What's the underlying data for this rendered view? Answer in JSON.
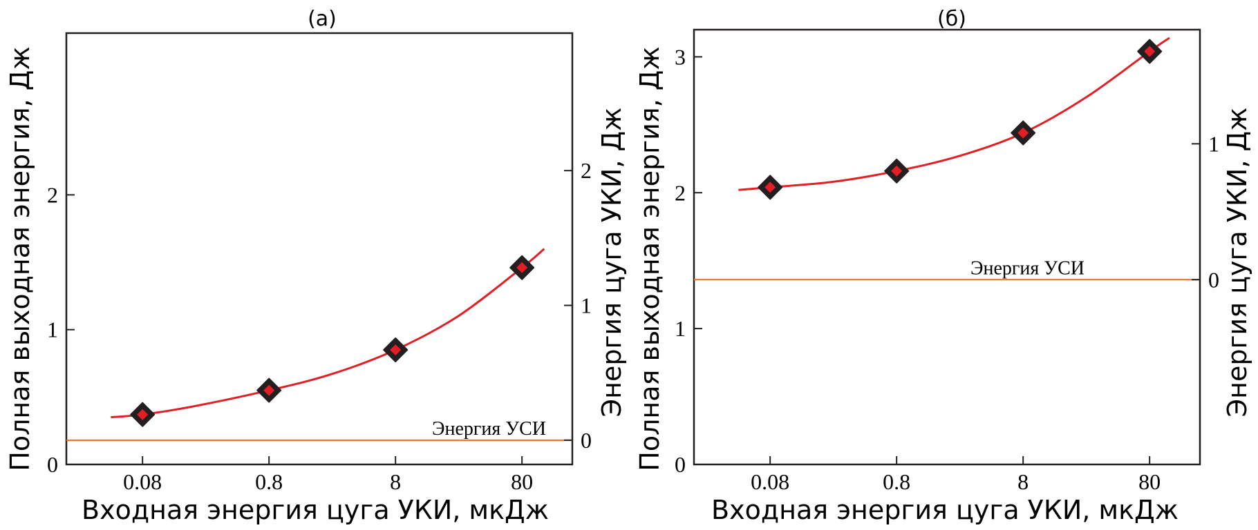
{
  "chart_data": [
    {
      "type": "scatter",
      "panel_label": "(a)",
      "xlabel": "Входная энергия цуга УКИ, мкДж",
      "ylabel": "Полная выходная энергия, Дж",
      "ylabel_right": "Энергия цуга УКИ, Дж",
      "x_scale": "log",
      "xlim": [
        0.02,
        200
      ],
      "x_ticks": [
        0.08,
        0.8,
        8,
        80
      ],
      "x_tick_labels": [
        "0.08",
        "0.8",
        "8",
        "80"
      ],
      "ylim": [
        0,
        3.2
      ],
      "y_ticks": [
        0,
        1,
        2
      ],
      "y_tick_labels": [
        "0",
        "1",
        "2"
      ],
      "ylim_right": [
        -0.18,
        3.02
      ],
      "y_ticks_right": [
        0,
        1,
        2
      ],
      "y_tick_labels_right": [
        "0",
        "1",
        "2"
      ],
      "points": [
        {
          "x": 0.08,
          "y": 0.37
        },
        {
          "x": 0.8,
          "y": 0.55
        },
        {
          "x": 8,
          "y": 0.85
        },
        {
          "x": 80,
          "y": 1.46
        }
      ],
      "fit_curve": [
        {
          "x": 0.045,
          "y": 0.35
        },
        {
          "x": 0.08,
          "y": 0.37
        },
        {
          "x": 0.2,
          "y": 0.43
        },
        {
          "x": 0.8,
          "y": 0.55
        },
        {
          "x": 2.5,
          "y": 0.67
        },
        {
          "x": 8,
          "y": 0.85
        },
        {
          "x": 25,
          "y": 1.1
        },
        {
          "x": 80,
          "y": 1.46
        },
        {
          "x": 120,
          "y": 1.6
        }
      ],
      "reference_line": {
        "y": 0.18,
        "label": "Энергия УСИ"
      },
      "colors": {
        "marker_fill": "#e31e24",
        "marker_edge": "#231f20",
        "fit": "#e31e24",
        "reference": "#f26b21"
      }
    },
    {
      "type": "scatter",
      "panel_label": "(б)",
      "xlabel": "Входная энергия цуга УКИ, мкДж",
      "ylabel": "Полная выходная энергия, Дж",
      "ylabel_right": "Энергия цуга УКИ, Дж",
      "x_scale": "log",
      "xlim": [
        0.02,
        200
      ],
      "x_ticks": [
        0.08,
        0.8,
        8,
        80
      ],
      "x_tick_labels": [
        "0.08",
        "0.8",
        "8",
        "80"
      ],
      "ylim": [
        0,
        3.2
      ],
      "y_ticks": [
        0,
        1,
        2,
        3
      ],
      "y_tick_labels": [
        "0",
        "1",
        "2",
        "3"
      ],
      "ylim_right": [
        -1.36,
        1.84
      ],
      "y_ticks_right": [
        0,
        1
      ],
      "y_tick_labels_right": [
        "0",
        "1"
      ],
      "points": [
        {
          "x": 0.08,
          "y": 2.04
        },
        {
          "x": 0.8,
          "y": 2.16
        },
        {
          "x": 8,
          "y": 2.44
        },
        {
          "x": 80,
          "y": 3.04
        }
      ],
      "fit_curve": [
        {
          "x": 0.045,
          "y": 2.02
        },
        {
          "x": 0.08,
          "y": 2.04
        },
        {
          "x": 0.25,
          "y": 2.08
        },
        {
          "x": 0.8,
          "y": 2.16
        },
        {
          "x": 2.5,
          "y": 2.27
        },
        {
          "x": 8,
          "y": 2.44
        },
        {
          "x": 25,
          "y": 2.7
        },
        {
          "x": 80,
          "y": 3.04
        },
        {
          "x": 115,
          "y": 3.14
        }
      ],
      "reference_line": {
        "y": 1.36,
        "label": "Энергия УСИ"
      },
      "colors": {
        "marker_fill": "#e31e24",
        "marker_edge": "#231f20",
        "fit": "#e31e24",
        "reference": "#f26b21"
      }
    }
  ]
}
